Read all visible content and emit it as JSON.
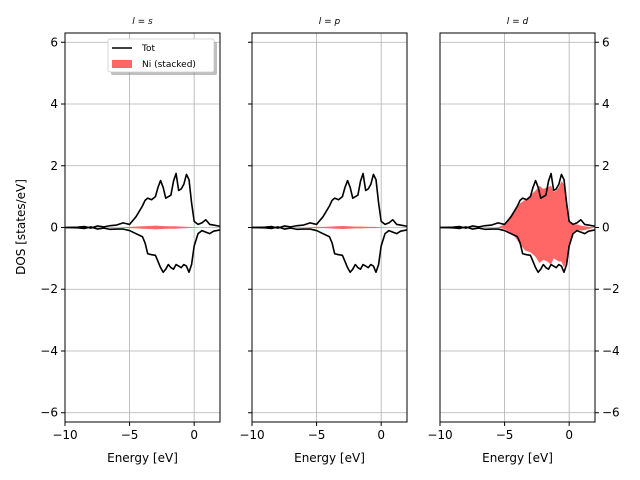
{
  "chart_data": {
    "type": "area",
    "ylabel": "DOS [states/eV]",
    "xlabel": "Energy [eV]",
    "xlim": [
      -10,
      2
    ],
    "ylim": [
      -6.3,
      6.3
    ],
    "xticks": [
      -10,
      -5,
      0
    ],
    "xtick_labels": [
      "−10",
      "−5",
      "0"
    ],
    "yticks": [
      -6,
      -4,
      -2,
      0,
      2,
      4,
      6
    ],
    "ytick_labels": [
      "−6",
      "−4",
      "−2",
      "0",
      "2",
      "4",
      "6"
    ],
    "grid": true,
    "legend_placement": "upper-right of first panel",
    "legend": [
      {
        "label": "Tot",
        "kind": "line",
        "color": "#000000"
      },
      {
        "label": "Ni (stacked)",
        "kind": "patch",
        "color": "#ff6666"
      }
    ],
    "colors": {
      "total": "#000000",
      "ni": "#ff6666",
      "grid": "#b0b0b0"
    },
    "panels": [
      {
        "title": "l = s",
        "ytick_side": "left",
        "total_up": {
          "x": [
            -10,
            -9,
            -8.5,
            -8,
            -7.5,
            -7,
            -6.5,
            -6,
            -5.5,
            -5,
            -4.5,
            -4,
            -3.8,
            -3.6,
            -3.3,
            -3,
            -2.8,
            -2.6,
            -2.4,
            -2.2,
            -2,
            -1.8,
            -1.6,
            -1.4,
            -1.2,
            -1,
            -0.8,
            -0.6,
            -0.4,
            -0.2,
            0,
            0.3,
            0.6,
            0.9,
            1.2,
            1.5,
            2
          ],
          "y": [
            0,
            0.01,
            0.03,
            -0.02,
            0.05,
            0.02,
            0.06,
            0.08,
            0.15,
            0.1,
            0.35,
            0.7,
            0.88,
            0.95,
            0.9,
            1.0,
            1.3,
            1.52,
            1.3,
            0.95,
            1.0,
            1.05,
            1.5,
            1.75,
            1.2,
            1.25,
            1.4,
            1.72,
            1.55,
            0.8,
            0.2,
            0.1,
            0.15,
            0.25,
            0.1,
            0.08,
            0.04
          ]
        },
        "total_down": {
          "x": [
            -10,
            -9,
            -8.5,
            -8,
            -7.5,
            -7,
            -6.5,
            -6,
            -5.5,
            -5,
            -4.5,
            -4,
            -3.8,
            -3.6,
            -3.3,
            -3,
            -2.8,
            -2.6,
            -2.4,
            -2.2,
            -2,
            -1.8,
            -1.6,
            -1.4,
            -1.2,
            -1,
            -0.8,
            -0.6,
            -0.4,
            -0.2,
            0,
            0.3,
            0.6,
            0.9,
            1.2,
            1.5,
            2
          ],
          "y": [
            0,
            -0.01,
            -0.03,
            0.02,
            -0.05,
            -0.02,
            -0.06,
            -0.05,
            -0.05,
            -0.1,
            -0.2,
            -0.3,
            -0.5,
            -0.85,
            -0.88,
            -0.9,
            -1.1,
            -1.3,
            -1.45,
            -1.35,
            -1.2,
            -1.3,
            -1.35,
            -1.2,
            -1.25,
            -1.3,
            -1.2,
            -1.25,
            -1.45,
            -1.2,
            -0.6,
            -0.2,
            -0.1,
            -0.15,
            -0.2,
            -0.12,
            -0.08
          ]
        },
        "ni_up": {
          "x": [
            -10,
            -6,
            -5.5,
            -5,
            -4.5,
            -4,
            -3.5,
            -3,
            -2.5,
            -2,
            -1.5,
            -1,
            -0.5,
            0,
            0.5,
            2
          ],
          "y": [
            0,
            0,
            0.01,
            0.02,
            0.03,
            0.04,
            0.05,
            0.06,
            0.05,
            0.04,
            0.04,
            0.03,
            0.02,
            0.01,
            0,
            0
          ]
        },
        "ni_down": {
          "x": [
            -10,
            -6,
            -5.5,
            -5,
            -4.5,
            -4,
            -3.5,
            -3,
            -2.5,
            -2,
            -1.5,
            -1,
            -0.5,
            0,
            0.5,
            2
          ],
          "y": [
            0,
            0,
            -0.01,
            -0.02,
            -0.03,
            -0.04,
            -0.05,
            -0.06,
            -0.05,
            -0.04,
            -0.04,
            -0.03,
            -0.02,
            -0.01,
            0,
            0
          ]
        }
      },
      {
        "title": "l = p",
        "ytick_side": "none",
        "total_up": {
          "x": [
            -10,
            -9,
            -8.5,
            -8,
            -7.5,
            -7,
            -6.5,
            -6,
            -5.5,
            -5,
            -4.5,
            -4,
            -3.8,
            -3.6,
            -3.3,
            -3,
            -2.8,
            -2.6,
            -2.4,
            -2.2,
            -2,
            -1.8,
            -1.6,
            -1.4,
            -1.2,
            -1,
            -0.8,
            -0.6,
            -0.4,
            -0.2,
            0,
            0.3,
            0.6,
            0.9,
            1.2,
            1.5,
            2
          ],
          "y": [
            0,
            0.01,
            0.03,
            -0.02,
            0.05,
            0.02,
            0.06,
            0.08,
            0.15,
            0.1,
            0.35,
            0.7,
            0.88,
            0.95,
            0.9,
            1.0,
            1.3,
            1.52,
            1.3,
            0.95,
            1.0,
            1.05,
            1.5,
            1.75,
            1.2,
            1.25,
            1.4,
            1.72,
            1.55,
            0.8,
            0.2,
            0.1,
            0.15,
            0.25,
            0.1,
            0.08,
            0.04
          ]
        },
        "total_down": {
          "x": [
            -10,
            -9,
            -8.5,
            -8,
            -7.5,
            -7,
            -6.5,
            -6,
            -5.5,
            -5,
            -4.5,
            -4,
            -3.8,
            -3.6,
            -3.3,
            -3,
            -2.8,
            -2.6,
            -2.4,
            -2.2,
            -2,
            -1.8,
            -1.6,
            -1.4,
            -1.2,
            -1,
            -0.8,
            -0.6,
            -0.4,
            -0.2,
            0,
            0.3,
            0.6,
            0.9,
            1.2,
            1.5,
            2
          ],
          "y": [
            0,
            -0.01,
            -0.03,
            0.02,
            -0.05,
            -0.02,
            -0.06,
            -0.05,
            -0.05,
            -0.1,
            -0.2,
            -0.3,
            -0.5,
            -0.85,
            -0.88,
            -0.9,
            -1.1,
            -1.3,
            -1.45,
            -1.35,
            -1.2,
            -1.3,
            -1.35,
            -1.2,
            -1.25,
            -1.3,
            -1.2,
            -1.25,
            -1.45,
            -1.2,
            -0.6,
            -0.2,
            -0.1,
            -0.15,
            -0.2,
            -0.12,
            -0.08
          ]
        },
        "ni_up": {
          "x": [
            -10,
            -6,
            -5.5,
            -5,
            -4.5,
            -4,
            -3.5,
            -3,
            -2.5,
            -2,
            -1.5,
            -1,
            -0.5,
            0,
            0.5,
            2
          ],
          "y": [
            0,
            0,
            0.01,
            0.02,
            0.02,
            0.03,
            0.04,
            0.05,
            0.04,
            0.03,
            0.03,
            0.02,
            0.02,
            0.01,
            0,
            0
          ]
        },
        "ni_down": {
          "x": [
            -10,
            -6,
            -5.5,
            -5,
            -4.5,
            -4,
            -3.5,
            -3,
            -2.5,
            -2,
            -1.5,
            -1,
            -0.5,
            0,
            0.5,
            2
          ],
          "y": [
            0,
            0,
            -0.01,
            -0.02,
            -0.02,
            -0.03,
            -0.04,
            -0.05,
            -0.04,
            -0.03,
            -0.03,
            -0.02,
            -0.02,
            -0.01,
            0,
            0
          ]
        }
      },
      {
        "title": "l = d",
        "ytick_side": "right",
        "total_up": {
          "x": [
            -10,
            -9,
            -8.5,
            -8,
            -7.5,
            -7,
            -6.5,
            -6,
            -5.5,
            -5,
            -4.5,
            -4,
            -3.8,
            -3.6,
            -3.3,
            -3,
            -2.8,
            -2.6,
            -2.4,
            -2.2,
            -2,
            -1.8,
            -1.6,
            -1.4,
            -1.2,
            -1,
            -0.8,
            -0.6,
            -0.4,
            -0.2,
            0,
            0.3,
            0.6,
            0.9,
            1.2,
            1.5,
            2
          ],
          "y": [
            0,
            0.01,
            0.03,
            -0.02,
            0.05,
            0.02,
            0.06,
            0.08,
            0.15,
            0.1,
            0.35,
            0.7,
            0.88,
            0.95,
            0.9,
            1.0,
            1.3,
            1.52,
            1.3,
            0.95,
            1.0,
            1.05,
            1.5,
            1.75,
            1.2,
            1.25,
            1.4,
            1.72,
            1.55,
            0.8,
            0.2,
            0.1,
            0.15,
            0.25,
            0.1,
            0.08,
            0.04
          ]
        },
        "total_down": {
          "x": [
            -10,
            -9,
            -8.5,
            -8,
            -7.5,
            -7,
            -6.5,
            -6,
            -5.5,
            -5,
            -4.5,
            -4,
            -3.8,
            -3.6,
            -3.3,
            -3,
            -2.8,
            -2.6,
            -2.4,
            -2.2,
            -2,
            -1.8,
            -1.6,
            -1.4,
            -1.2,
            -1,
            -0.8,
            -0.6,
            -0.4,
            -0.2,
            0,
            0.3,
            0.6,
            0.9,
            1.2,
            1.5,
            2
          ],
          "y": [
            0,
            -0.01,
            -0.03,
            0.02,
            -0.05,
            -0.02,
            -0.06,
            -0.05,
            -0.05,
            -0.1,
            -0.2,
            -0.3,
            -0.5,
            -0.85,
            -0.88,
            -0.9,
            -1.1,
            -1.3,
            -1.45,
            -1.35,
            -1.2,
            -1.3,
            -1.35,
            -1.2,
            -1.25,
            -1.3,
            -1.2,
            -1.25,
            -1.45,
            -1.2,
            -0.6,
            -0.2,
            -0.1,
            -0.15,
            -0.2,
            -0.12,
            -0.08
          ]
        },
        "ni_up": {
          "x": [
            -10,
            -6,
            -5.5,
            -5,
            -4.6,
            -4.2,
            -3.8,
            -3.4,
            -3,
            -2.6,
            -2.3,
            -2,
            -1.7,
            -1.4,
            -1.2,
            -1,
            -0.8,
            -0.6,
            -0.4,
            -0.2,
            0,
            0.3,
            0.6,
            1,
            2
          ],
          "y": [
            0,
            0,
            0.01,
            0.1,
            0.35,
            0.6,
            0.78,
            0.9,
            1.05,
            1.2,
            1.35,
            1.25,
            1.3,
            1.35,
            1.15,
            1.2,
            1.3,
            1.5,
            1.4,
            0.8,
            0.18,
            0.08,
            0.1,
            0.05,
            0
          ]
        },
        "ni_down": {
          "x": [
            -10,
            -6,
            -5.5,
            -5,
            -4.6,
            -4.2,
            -3.8,
            -3.4,
            -3,
            -2.6,
            -2.3,
            -2,
            -1.7,
            -1.4,
            -1.2,
            -1,
            -0.8,
            -0.6,
            -0.4,
            -0.2,
            0,
            0.3,
            0.6,
            1,
            2
          ],
          "y": [
            0,
            0,
            -0.01,
            -0.05,
            -0.15,
            -0.3,
            -0.55,
            -0.75,
            -0.8,
            -0.95,
            -1.15,
            -1.05,
            -1.1,
            -1.2,
            -1.0,
            -1.05,
            -1.1,
            -1.1,
            -1.3,
            -1.1,
            -0.55,
            -0.15,
            -0.08,
            -0.1,
            0
          ]
        }
      }
    ]
  }
}
